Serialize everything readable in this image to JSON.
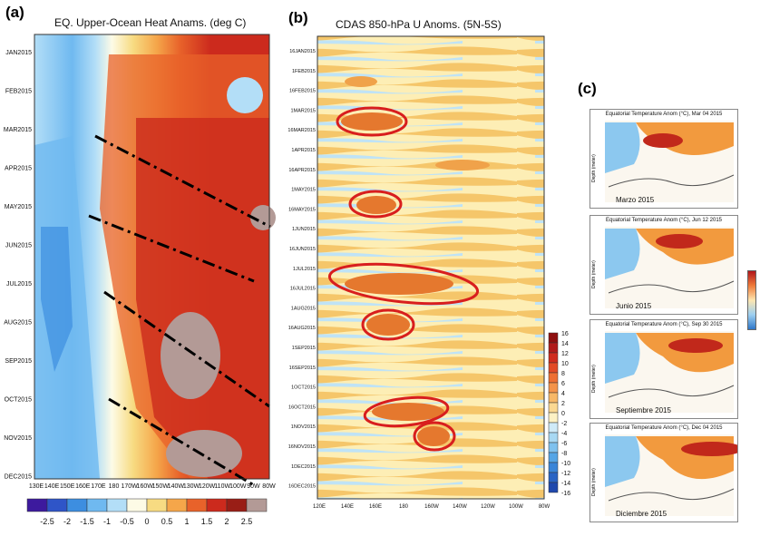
{
  "panels": {
    "a": {
      "letter": "(a)",
      "title": "EQ. Upper-Ocean Heat Anams. (deg C)",
      "months": [
        "JAN2015",
        "FEB2015",
        "MAR2015",
        "APR2015",
        "MAY2015",
        "JUN2015",
        "JUL2015",
        "AUG2015",
        "SEP2015",
        "OCT2015",
        "NOV2015",
        "DEC2015"
      ],
      "lons": [
        "130E",
        "140E",
        "150E",
        "160E",
        "170E",
        "180",
        "170W",
        "160W",
        "150W",
        "140W",
        "130W",
        "120W",
        "110W",
        "100W",
        "90W",
        "80W"
      ],
      "colorbar_labels": [
        "-2.5",
        "-2",
        "-1.5",
        "-1",
        "-0.5",
        "0",
        "0.5",
        "1",
        "1.5",
        "2",
        "2.5"
      ],
      "colorbar_colors": [
        "#3d1a9e",
        "#2f55c8",
        "#3d8ee0",
        "#6fb9f0",
        "#b3def7",
        "#fdfbe6",
        "#f7db82",
        "#f5a64a",
        "#e8622a",
        "#cc2a1d",
        "#991e16",
        "#b39a96"
      ]
    },
    "b": {
      "letter": "(b)",
      "title": "CDAS 850-hPa U Anoms. (5N-5S)",
      "dates": [
        "16JAN2015",
        "1FEB2015",
        "16FEB2015",
        "1MAR2015",
        "16MAR2015",
        "1APR2015",
        "16APR2015",
        "1MAY2015",
        "16MAY2015",
        "1JUN2015",
        "16JUN2015",
        "1JUL2015",
        "16JUL2015",
        "1AUG2015",
        "16AUG2015",
        "1SEP2015",
        "16SEP2015",
        "1OCT2015",
        "16OCT2015",
        "1NOV2015",
        "16NOV2015",
        "1DEC2015",
        "16DEC2015"
      ],
      "lons": [
        "120E",
        "140E",
        "160E",
        "180",
        "160W",
        "140W",
        "120W",
        "100W",
        "80W"
      ],
      "colorbar_labels": [
        "16",
        "14",
        "12",
        "10",
        "8",
        "6",
        "4",
        "2",
        "0",
        "-2",
        "-4",
        "-6",
        "-8",
        "-10",
        "-12",
        "-14",
        "-16"
      ]
    },
    "c": {
      "letter": "(c)",
      "subplots": [
        {
          "title": "Equatorial Temperature Anom (°C), Mar 04 2015",
          "label": "Marzo 2015"
        },
        {
          "title": "Equatorial Temperature Anom (°C), Jun 12 2015",
          "label": "Junio 2015"
        },
        {
          "title": "Equatorial Temperature Anom (°C), Sep 30 2015",
          "label": "Septiembre 2015"
        },
        {
          "title": "Equatorial Temperature Anom (°C), Dec 04 2015",
          "label": "Diciembre 2015"
        }
      ],
      "ylabel": "Depth (meter)"
    }
  },
  "chart_data": [
    {
      "type": "heatmap",
      "title": "EQ. Upper-Ocean Heat Anams. (deg C)",
      "x": [
        "130E",
        "140E",
        "150E",
        "160E",
        "170E",
        "180",
        "170W",
        "160W",
        "150W",
        "140W",
        "130W",
        "120W",
        "110W",
        "100W",
        "90W",
        "80W"
      ],
      "y": [
        "JAN2015",
        "FEB2015",
        "MAR2015",
        "APR2015",
        "MAY2015",
        "JUN2015",
        "JUL2015",
        "AUG2015",
        "SEP2015",
        "OCT2015",
        "NOV2015",
        "DEC2015"
      ],
      "colorbar": [
        -2.5,
        -2,
        -1.5,
        -1,
        -0.5,
        0,
        0.5,
        1,
        1.5,
        2,
        2.5
      ]
    },
    {
      "type": "heatmap",
      "title": "CDAS 850-hPa U Anoms. (5N-5S)",
      "x": [
        "120E",
        "140E",
        "160E",
        "180",
        "160W",
        "140W",
        "120W",
        "100W",
        "80W"
      ],
      "colorbar": [
        16,
        14,
        12,
        10,
        8,
        6,
        4,
        2,
        0,
        -2,
        -4,
        -6,
        -8,
        -10,
        -12,
        -14,
        -16
      ]
    }
  ]
}
